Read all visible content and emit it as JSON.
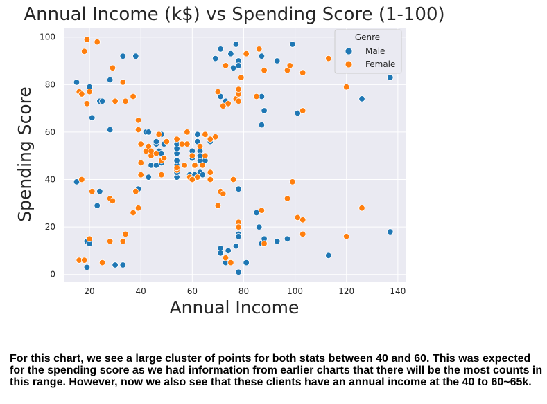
{
  "chart_data": {
    "type": "scatter",
    "title": "Annual Income (k$) vs Spending Score (1-100)",
    "xlabel": "Annual Income",
    "ylabel": "Spending Score",
    "xlim": [
      10,
      143
    ],
    "ylim": [
      -3,
      104
    ],
    "xticks": [
      20,
      40,
      60,
      80,
      100,
      120,
      140
    ],
    "yticks": [
      0,
      20,
      40,
      60,
      80,
      100
    ],
    "grid": true,
    "legend": {
      "title": "Genre",
      "placement": "top-right"
    },
    "series": [
      {
        "name": "Male",
        "color": "#1f77b4",
        "points": [
          [
            15,
            39
          ],
          [
            15,
            81
          ],
          [
            19,
            3
          ],
          [
            19,
            14
          ],
          [
            20,
            13
          ],
          [
            20,
            79
          ],
          [
            21,
            66
          ],
          [
            23,
            29
          ],
          [
            24,
            35
          ],
          [
            24,
            73
          ],
          [
            25,
            73
          ],
          [
            28,
            61
          ],
          [
            28,
            82
          ],
          [
            30,
            4
          ],
          [
            33,
            4
          ],
          [
            33,
            92
          ],
          [
            38,
            92
          ],
          [
            39,
            36
          ],
          [
            42,
            60
          ],
          [
            43,
            60
          ],
          [
            43,
            41
          ],
          [
            44,
            46
          ],
          [
            46,
            46
          ],
          [
            46,
            55
          ],
          [
            46,
            56
          ],
          [
            47,
            52
          ],
          [
            48,
            51
          ],
          [
            48,
            59
          ],
          [
            48,
            47
          ],
          [
            49,
            55
          ],
          [
            54,
            41
          ],
          [
            54,
            43
          ],
          [
            54,
            46
          ],
          [
            54,
            48
          ],
          [
            54,
            51
          ],
          [
            54,
            53
          ],
          [
            54,
            55
          ],
          [
            59,
            42
          ],
          [
            60,
            49
          ],
          [
            60,
            52
          ],
          [
            61,
            42
          ],
          [
            62,
            59
          ],
          [
            62,
            56
          ],
          [
            63,
            48
          ],
          [
            63,
            52
          ],
          [
            63,
            43
          ],
          [
            63,
            50
          ],
          [
            64,
            42
          ],
          [
            65,
            48
          ],
          [
            67,
            56
          ],
          [
            69,
            91
          ],
          [
            71,
            35
          ],
          [
            71,
            95
          ],
          [
            71,
            11
          ],
          [
            71,
            9
          ],
          [
            71,
            75
          ],
          [
            73,
            73
          ],
          [
            73,
            5
          ],
          [
            74,
            10
          ],
          [
            75,
            93
          ],
          [
            76,
            87
          ],
          [
            77,
            97
          ],
          [
            77,
            12
          ],
          [
            78,
            36
          ],
          [
            78,
            90
          ],
          [
            78,
            1
          ],
          [
            78,
            17
          ],
          [
            78,
            88
          ],
          [
            78,
            16
          ],
          [
            81,
            5
          ],
          [
            85,
            26
          ],
          [
            86,
            20
          ],
          [
            87,
            13
          ],
          [
            87,
            75
          ],
          [
            87,
            63
          ],
          [
            87,
            92
          ],
          [
            88,
            69
          ],
          [
            88,
            15
          ],
          [
            93,
            14
          ],
          [
            93,
            90
          ],
          [
            97,
            15
          ],
          [
            99,
            97
          ],
          [
            101,
            68
          ],
          [
            113,
            8
          ],
          [
            126,
            74
          ],
          [
            137,
            18
          ],
          [
            137,
            83
          ]
        ]
      },
      {
        "name": "Female",
        "color": "#ff7f0e",
        "points": [
          [
            16,
            6
          ],
          [
            16,
            77
          ],
          [
            17,
            40
          ],
          [
            17,
            76
          ],
          [
            18,
            6
          ],
          [
            18,
            94
          ],
          [
            19,
            72
          ],
          [
            19,
            99
          ],
          [
            20,
            15
          ],
          [
            20,
            77
          ],
          [
            21,
            35
          ],
          [
            23,
            98
          ],
          [
            25,
            5
          ],
          [
            28,
            14
          ],
          [
            28,
            32
          ],
          [
            29,
            31
          ],
          [
            29,
            87
          ],
          [
            30,
            73
          ],
          [
            33,
            14
          ],
          [
            33,
            81
          ],
          [
            34,
            17
          ],
          [
            34,
            73
          ],
          [
            37,
            26
          ],
          [
            37,
            75
          ],
          [
            38,
            35
          ],
          [
            39,
            28
          ],
          [
            39,
            61
          ],
          [
            39,
            65
          ],
          [
            40,
            47
          ],
          [
            40,
            42
          ],
          [
            40,
            55
          ],
          [
            42,
            52
          ],
          [
            43,
            54
          ],
          [
            44,
            50
          ],
          [
            44,
            52
          ],
          [
            46,
            51
          ],
          [
            47,
            59
          ],
          [
            48,
            48
          ],
          [
            48,
            42
          ],
          [
            49,
            49
          ],
          [
            50,
            56
          ],
          [
            54,
            57
          ],
          [
            54,
            44
          ],
          [
            54,
            45
          ],
          [
            56,
            55
          ],
          [
            57,
            46
          ],
          [
            58,
            60
          ],
          [
            58,
            55
          ],
          [
            59,
            41
          ],
          [
            60,
            50
          ],
          [
            60,
            40
          ],
          [
            61,
            46
          ],
          [
            62,
            41
          ],
          [
            63,
            54
          ],
          [
            64,
            46
          ],
          [
            65,
            59
          ],
          [
            65,
            50
          ],
          [
            67,
            43
          ],
          [
            67,
            57
          ],
          [
            67,
            40
          ],
          [
            69,
            58
          ],
          [
            70,
            29
          ],
          [
            70,
            77
          ],
          [
            71,
            35
          ],
          [
            72,
            34
          ],
          [
            72,
            71
          ],
          [
            73,
            88
          ],
          [
            73,
            7
          ],
          [
            74,
            72
          ],
          [
            75,
            5
          ],
          [
            76,
            40
          ],
          [
            77,
            74
          ],
          [
            78,
            22
          ],
          [
            78,
            20
          ],
          [
            78,
            73
          ],
          [
            78,
            76
          ],
          [
            78,
            78
          ],
          [
            79,
            83
          ],
          [
            81,
            93
          ],
          [
            85,
            75
          ],
          [
            86,
            95
          ],
          [
            87,
            27
          ],
          [
            88,
            13
          ],
          [
            88,
            86
          ],
          [
            97,
            32
          ],
          [
            97,
            86
          ],
          [
            98,
            88
          ],
          [
            99,
            39
          ],
          [
            101,
            24
          ],
          [
            103,
            17
          ],
          [
            103,
            23
          ],
          [
            103,
            85
          ],
          [
            103,
            69
          ],
          [
            113,
            91
          ],
          [
            120,
            16
          ],
          [
            120,
            79
          ],
          [
            126,
            28
          ]
        ]
      }
    ]
  },
  "caption": "For this chart, we see a large cluster of points for both stats between 40 and 60. This was expected for the spending score as we had information from earlier charts that there will be the most counts in this range. However, now we also see that these clients have an annual income at the 40 to 60~65k."
}
